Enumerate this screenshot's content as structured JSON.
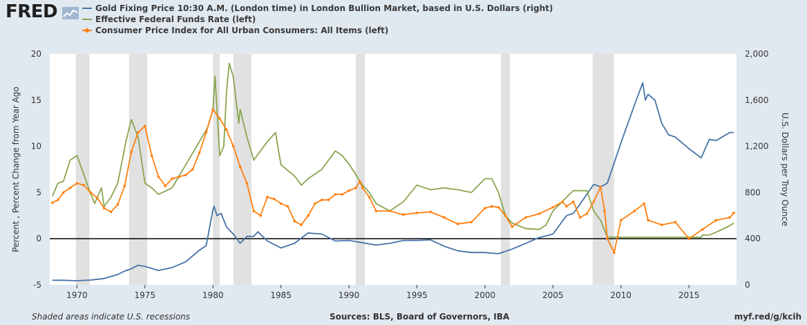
{
  "header": {
    "logo_text": "FRED",
    "logo_icon": "line-chart-icon"
  },
  "chart_data": {
    "type": "line",
    "legend_placement": "top-left",
    "grid": false,
    "recession_shading": true,
    "shaded_periods": [
      [
        1969.92,
        1970.92
      ],
      [
        1973.83,
        1975.17
      ],
      [
        1980.0,
        1980.5
      ],
      [
        1981.5,
        1982.83
      ],
      [
        1990.5,
        1991.17
      ],
      [
        2001.17,
        2001.83
      ],
      [
        2007.92,
        2009.5
      ]
    ],
    "series": [
      {
        "name": "Gold Fixing Price 10:30 A.M. (London time) in London Bullion Market, based in U.S. Dollars (right)",
        "axis": "right",
        "color": "#4572a7",
        "x": [
          1968.2,
          1969,
          1970,
          1971,
          1972,
          1973,
          1973.5,
          1974,
          1974.5,
          1975,
          1976,
          1977,
          1978,
          1979,
          1979.5,
          1980,
          1980.08,
          1980.3,
          1980.6,
          1981,
          1981.5,
          1982,
          1982.5,
          1983,
          1983.3,
          1984,
          1985,
          1986,
          1987,
          1988,
          1989,
          1990,
          1991,
          1992,
          1993,
          1994,
          1995,
          1996,
          1997,
          1998,
          1999,
          2000,
          2001,
          2002,
          2003,
          2004,
          2005,
          2006,
          2006.5,
          2007,
          2008,
          2008.5,
          2009,
          2010,
          2011,
          2011.6,
          2011.8,
          2012,
          2012.5,
          2013,
          2013.5,
          2014,
          2015,
          2015.9,
          2016.5,
          2017,
          2018,
          2018.3
        ],
        "values": [
          40,
          40,
          36,
          42,
          55,
          90,
          120,
          140,
          170,
          160,
          125,
          150,
          200,
          300,
          340,
          650,
          680,
          600,
          620,
          500,
          440,
          360,
          420,
          420,
          460,
          380,
          320,
          360,
          450,
          440,
          380,
          385,
          365,
          345,
          360,
          385,
          385,
          390,
          335,
          295,
          280,
          280,
          270,
          310,
          360,
          410,
          440,
          600,
          620,
          700,
          870,
          850,
          880,
          1230,
          1560,
          1750,
          1600,
          1650,
          1600,
          1400,
          1300,
          1280,
          1180,
          1100,
          1260,
          1250,
          1320,
          1320
        ]
      },
      {
        "name": "Effective Federal Funds Rate (left)",
        "axis": "left",
        "color": "#89a54e",
        "x": [
          1968.2,
          1968.6,
          1969,
          1969.5,
          1970,
          1970.5,
          1971,
          1971.3,
          1971.8,
          1972,
          1972.5,
          1973,
          1973.6,
          1974,
          1974.5,
          1975,
          1975.5,
          1976,
          1977,
          1978,
          1979,
          1979.6,
          1980,
          1980.15,
          1980.5,
          1980.8,
          1981,
          1981.2,
          1981.5,
          1981.9,
          1982,
          1982.5,
          1982.9,
          1983,
          1984,
          1984.6,
          1985,
          1986,
          1986.5,
          1987,
          1988,
          1989,
          1989.5,
          1990,
          1991,
          1991.5,
          1992,
          1993,
          1994,
          1995,
          1996,
          1997,
          1998,
          1999,
          2000,
          2000.5,
          2001,
          2001.5,
          2002,
          2003,
          2004,
          2004.5,
          2005,
          2006,
          2006.5,
          2007,
          2007.5,
          2008,
          2008.5,
          2009,
          2010,
          2015.9,
          2016,
          2016.5,
          2017,
          2018,
          2018.3
        ],
        "values": [
          4.6,
          6,
          6.2,
          8.5,
          9,
          7,
          4.9,
          3.8,
          5.5,
          3.5,
          4.5,
          6,
          10.5,
          12.9,
          11,
          6,
          5.5,
          4.8,
          5.5,
          8,
          10.5,
          12,
          14,
          17.6,
          9,
          10,
          16,
          19,
          17.5,
          12.5,
          14,
          11,
          9,
          8.5,
          10.5,
          11.5,
          8,
          6.8,
          5.8,
          6.5,
          7.5,
          9.5,
          9,
          8.1,
          5.8,
          5,
          3.8,
          3,
          4,
          5.8,
          5.3,
          5.5,
          5.3,
          5,
          6.5,
          6.5,
          5,
          2.5,
          1.7,
          1.1,
          1,
          1.5,
          3,
          4.5,
          5.2,
          5.2,
          5.2,
          3,
          2,
          0.2,
          0.15,
          0.15,
          0.4,
          0.4,
          0.7,
          1.4,
          1.7
        ]
      },
      {
        "name": "Consumer Price Index for All Urban Consumers: All Items (left)",
        "axis": "left",
        "color": "#ff7f0e",
        "markers": true,
        "x": [
          1968.2,
          1968.6,
          1969,
          1969.5,
          1970,
          1970.5,
          1971,
          1971.5,
          1972,
          1972.5,
          1973,
          1973.5,
          1974,
          1974.5,
          1975,
          1975.5,
          1976,
          1976.5,
          1977,
          1977.5,
          1978,
          1978.5,
          1979,
          1979.5,
          1980,
          1980.5,
          1981,
          1981.5,
          1982,
          1982.5,
          1983,
          1983.5,
          1984,
          1984.5,
          1985,
          1985.5,
          1986,
          1986.5,
          1987,
          1987.5,
          1988,
          1988.5,
          1989,
          1989.5,
          1990,
          1990.5,
          1990.8,
          1991,
          1991.5,
          1992,
          1993,
          1994,
          1995,
          1996,
          1997,
          1998,
          1999,
          2000,
          2000.5,
          2001,
          2001.5,
          2002,
          2003,
          2004,
          2005,
          2005.7,
          2006,
          2006.5,
          2007,
          2007.5,
          2008,
          2008.5,
          2008.8,
          2009,
          2009.5,
          2010,
          2011,
          2011.7,
          2012,
          2013,
          2014,
          2015,
          2016,
          2017,
          2018,
          2018.3
        ],
        "values": [
          3.9,
          4.2,
          5,
          5.5,
          6,
          5.8,
          5,
          4.4,
          3.3,
          2.9,
          3.7,
          5.7,
          9.4,
          11.5,
          12.2,
          9,
          6.7,
          5.7,
          6.5,
          6.7,
          6.9,
          7.5,
          9.3,
          11.5,
          14,
          13,
          11.8,
          10,
          7.8,
          6,
          3,
          2.5,
          4.5,
          4.3,
          3.8,
          3.5,
          1.9,
          1.5,
          2.5,
          3.8,
          4.2,
          4.2,
          4.8,
          4.8,
          5.2,
          5.5,
          6.2,
          5.5,
          4.5,
          3,
          3,
          2.6,
          2.8,
          2.9,
          2.3,
          1.6,
          1.8,
          3.3,
          3.5,
          3.4,
          2.5,
          1.3,
          2.3,
          2.7,
          3.4,
          4,
          3.5,
          4,
          2.3,
          2.7,
          4,
          5.6,
          3,
          0,
          -1.5,
          2,
          3,
          3.8,
          2,
          1.5,
          1.8,
          0,
          1,
          2,
          2.3,
          2.8
        ]
      }
    ],
    "left_axis": {
      "title": "Percent , Percent Change from Year Ago",
      "ylim": [
        -5,
        20
      ],
      "ticks": [
        -5,
        0,
        5,
        10,
        15,
        20
      ],
      "tick_labels": [
        "-5",
        "0",
        "5",
        "10",
        "15",
        "20"
      ]
    },
    "right_axis": {
      "title": "U.S. Dollars per Troy Ounce",
      "ylim": [
        0,
        2000
      ],
      "ticks": [
        0,
        400,
        800,
        1200,
        1600,
        2000
      ],
      "tick_labels": [
        "0",
        "400",
        "800",
        "1,200",
        "1,600",
        "2,000"
      ]
    },
    "x_axis": {
      "xlim": [
        1968.0,
        2018.5
      ],
      "ticks": [
        1970,
        1975,
        1980,
        1985,
        1990,
        1995,
        2000,
        2005,
        2010,
        2015
      ],
      "tick_labels": [
        "1970",
        "1975",
        "1980",
        "1985",
        "1990",
        "1995",
        "2000",
        "2005",
        "2010",
        "2015"
      ]
    },
    "zero_line": 0
  },
  "footer": {
    "recession_note": "Shaded areas indicate U.S. recessions",
    "sources": "Sources: BLS, Board of Governors, IBA",
    "short_url": "myf.red/g/kcih"
  }
}
